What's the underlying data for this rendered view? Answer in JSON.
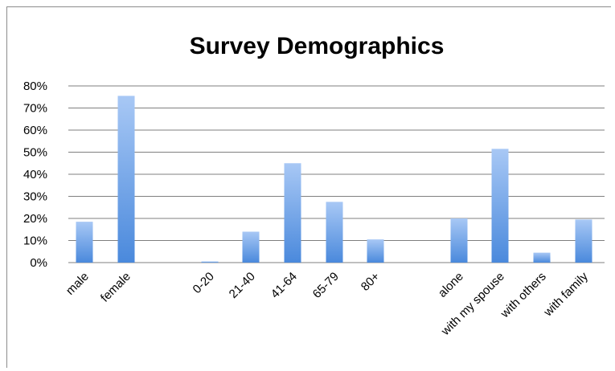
{
  "chart_data": {
    "type": "bar",
    "title": "Survey Demographics",
    "xlabel": "",
    "ylabel": "",
    "ylim": [
      0,
      80
    ],
    "y_ticks": [
      "0%",
      "10%",
      "20%",
      "30%",
      "40%",
      "50%",
      "60%",
      "70%",
      "80%"
    ],
    "grid": true,
    "legend": "none",
    "bar_color": "#5b9bd5",
    "categories": [
      "male",
      "female",
      "0-20",
      "21-40",
      "41-64",
      "65-79",
      "80+",
      "alone",
      "with my spouse",
      "with others",
      "with family"
    ],
    "values": [
      18.5,
      75.5,
      0.5,
      14,
      45,
      27.5,
      10.5,
      20,
      51.5,
      4.5,
      19.5
    ]
  }
}
